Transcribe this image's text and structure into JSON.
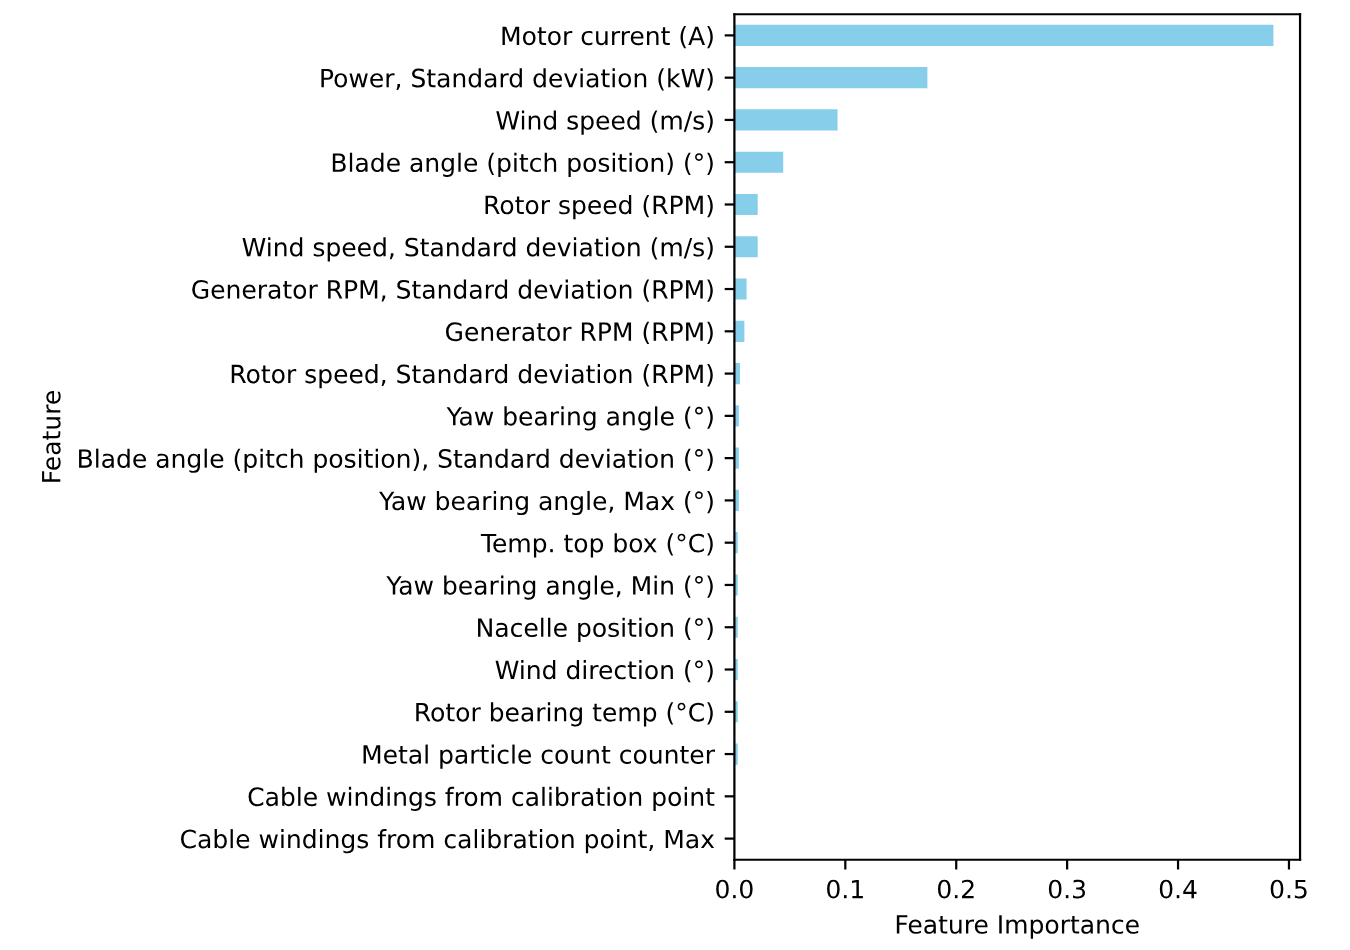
{
  "chart_data": {
    "type": "bar",
    "orientation": "horizontal",
    "xlabel": "Feature Importance",
    "ylabel": "Feature",
    "categories": [
      "Motor current (A)",
      "Power, Standard deviation (kW)",
      "Wind speed (m/s)",
      "Blade angle (pitch position) (°)",
      "Rotor speed (RPM)",
      "Wind speed, Standard deviation (m/s)",
      "Generator RPM, Standard deviation (RPM)",
      "Generator RPM (RPM)",
      "Rotor speed, Standard deviation (RPM)",
      "Yaw bearing angle (°)",
      "Blade angle (pitch position), Standard deviation (°)",
      "Yaw bearing angle, Max (°)",
      "Temp. top box (°C)",
      "Yaw bearing angle, Min (°)",
      "Nacelle position (°)",
      "Wind direction (°)",
      "Rotor bearing temp (°C)",
      "Metal particle count counter",
      "Cable windings from calibration point",
      "Cable windings from calibration point, Max"
    ],
    "values": [
      0.486,
      0.174,
      0.093,
      0.044,
      0.021,
      0.021,
      0.011,
      0.009,
      0.005,
      0.004,
      0.004,
      0.004,
      0.003,
      0.003,
      0.003,
      0.003,
      0.003,
      0.003,
      null,
      null
    ],
    "color": "#87ceeb",
    "xlim": [
      0,
      0.51
    ],
    "xticks": [
      {
        "value": 0,
        "label": "0.0"
      },
      0.1,
      0.2,
      0.3,
      0.4,
      0.5
    ],
    "grid": false,
    "legend": false
  }
}
